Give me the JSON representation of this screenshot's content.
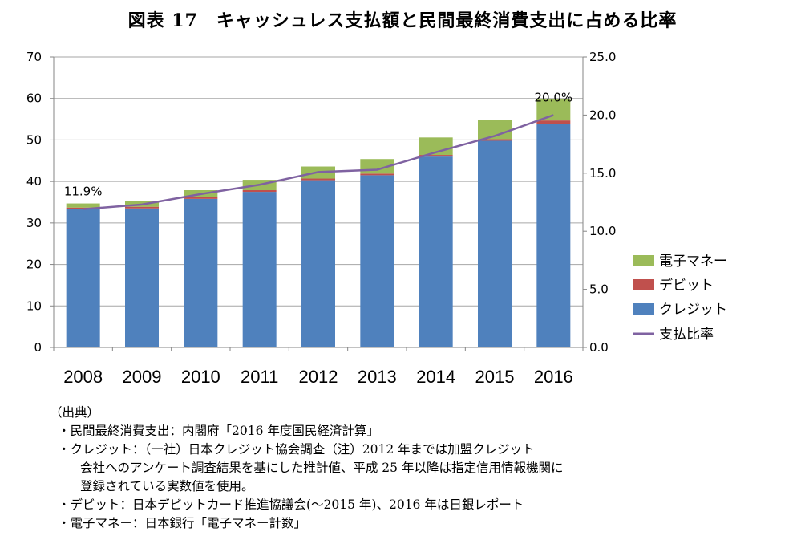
{
  "title": "図表 17　キャッシュレス支払額と民間最終消費支出に占める比率",
  "chart_data": {
    "type": "bar",
    "stacked": true,
    "categories": [
      "2008",
      "2009",
      "2010",
      "2011",
      "2012",
      "2013",
      "2014",
      "2015",
      "2016"
    ],
    "series": [
      {
        "name": "クレジット",
        "color": "#4f81bd",
        "values": [
          33.3,
          33.5,
          35.8,
          37.5,
          40.3,
          41.5,
          46.0,
          49.8,
          53.9
        ]
      },
      {
        "name": "デビット",
        "color": "#c0504d",
        "values": [
          0.4,
          0.4,
          0.4,
          0.4,
          0.4,
          0.4,
          0.4,
          0.4,
          0.8
        ]
      },
      {
        "name": "電子マネー",
        "color": "#9bbb59",
        "values": [
          1.0,
          1.3,
          1.7,
          2.5,
          2.9,
          3.5,
          4.2,
          4.6,
          5.1
        ]
      }
    ],
    "line_series": {
      "name": "支払比率",
      "color": "#7f62a1",
      "axis": "right",
      "values": [
        11.9,
        12.3,
        13.2,
        14.0,
        15.1,
        15.3,
        16.8,
        18.2,
        20.0
      ]
    },
    "data_labels": [
      {
        "category": "2008",
        "text": "11.9%"
      },
      {
        "category": "2016",
        "text": "20.0%"
      }
    ],
    "ylim_left": [
      0,
      70
    ],
    "yticks_left": [
      "0",
      "10",
      "20",
      "30",
      "40",
      "50",
      "60",
      "70"
    ],
    "ylim_right": [
      0,
      25
    ],
    "yticks_right": [
      "0.0",
      "5.0",
      "10.0",
      "15.0",
      "20.0",
      "25.0"
    ],
    "grid": true,
    "legend_position": "right",
    "legend": [
      "電子マネー",
      "デビット",
      "クレジット",
      "支払比率"
    ]
  },
  "notes": {
    "heading": "（出典）",
    "lines": [
      {
        "text": "・民間最終消費支出：内閣府「2016 年度国民経済計算」",
        "cont": false
      },
      {
        "text": "・クレジット：（一社）日本クレジット協会調査（注）2012 年までは加盟クレジット",
        "cont": false
      },
      {
        "text": "会社へのアンケート調査結果を基にした推計値、平成 25 年以降は指定信用情報機関に",
        "cont": true
      },
      {
        "text": "登録されている実数値を使用。",
        "cont": true
      },
      {
        "text": "・デビット：日本デビットカード推進協議会(〜2015 年)、2016 年は日銀レポート",
        "cont": false
      },
      {
        "text": "・電子マネー：日本銀行「電子マネー計数」",
        "cont": false
      }
    ]
  }
}
